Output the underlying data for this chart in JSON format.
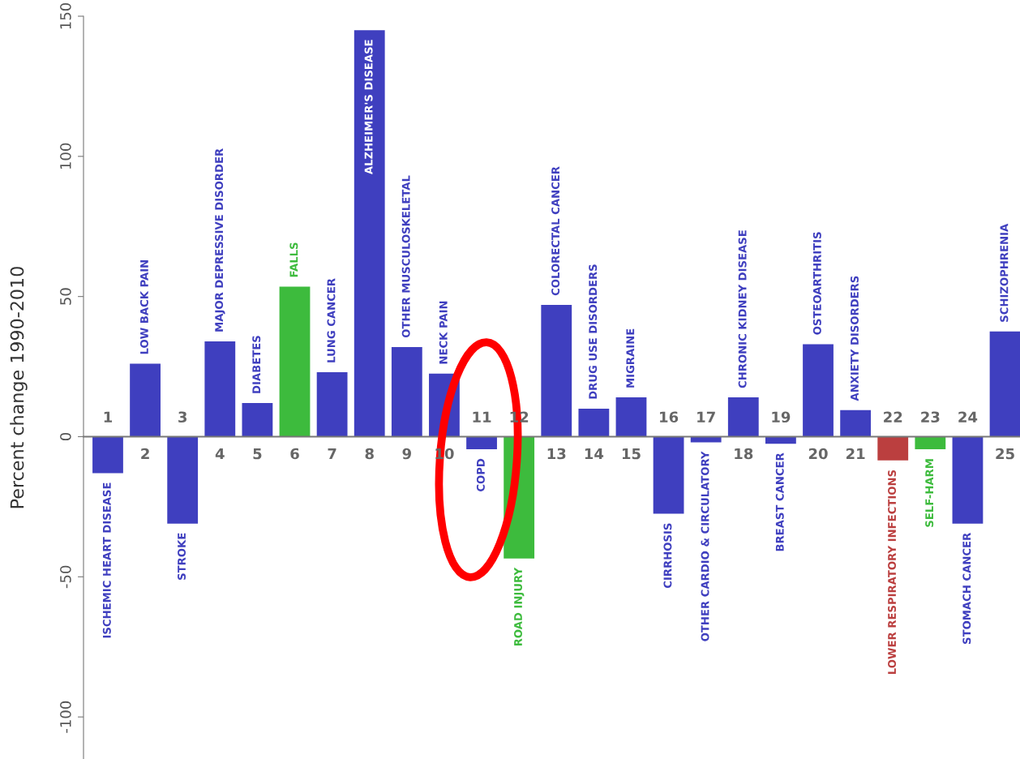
{
  "chart_data": {
    "type": "bar",
    "ylabel": "Percent change 1990-2010",
    "categories": [
      "1",
      "2",
      "3",
      "4",
      "5",
      "6",
      "7",
      "8",
      "9",
      "10",
      "11",
      "12",
      "13",
      "14",
      "15",
      "16",
      "17",
      "18",
      "19",
      "20",
      "21",
      "22",
      "23",
      "24",
      "25"
    ],
    "values": [
      -13,
      26,
      -31,
      34,
      12,
      53.5,
      23,
      145,
      32,
      22.5,
      -4.5,
      -43.5,
      47,
      10,
      14,
      -27.5,
      -2,
      14,
      -2.5,
      33,
      9.5,
      -8.5,
      -4.5,
      -31,
      37.5
    ],
    "colors": [
      "#3f3fbf",
      "#3f3fbf",
      "#3f3fbf",
      "#3f3fbf",
      "#3f3fbf",
      "#3dbb3d",
      "#3f3fbf",
      "#3f3fbf",
      "#3f3fbf",
      "#3f3fbf",
      "#3f3fbf",
      "#3dbb3d",
      "#3f3fbf",
      "#3f3fbf",
      "#3f3fbf",
      "#3f3fbf",
      "#3f3fbf",
      "#3f3fbf",
      "#3f3fbf",
      "#3f3fbf",
      "#3f3fbf",
      "#bb3f3f",
      "#3dbb3d",
      "#3f3fbf",
      "#3f3fbf"
    ],
    "ylim": [
      -115,
      150
    ],
    "yticks": [
      -100,
      -50,
      0,
      50,
      100,
      150
    ],
    "grid": false,
    "annotations": [
      {
        "text": "ISCHEMIC HEART DISEASE",
        "x": "1",
        "y": -13
      },
      {
        "text": "LOW BACK PAIN",
        "x": "2",
        "y": 26
      },
      {
        "text": "STROKE",
        "x": "3",
        "y": -31
      },
      {
        "text": "MAJOR DEPRESSIVE DISORDER",
        "x": "4",
        "y": 34
      },
      {
        "text": "DIABETES",
        "x": "5",
        "y": 12
      },
      {
        "text": "FALLS",
        "x": "6",
        "y": 53.5
      },
      {
        "text": "LUNG CANCER",
        "x": "7",
        "y": 23
      },
      {
        "text": "ALZHEIMER'S DISEASE",
        "x": "8",
        "y": 145
      },
      {
        "text": "OTHER MUSCULOSKELETAL",
        "x": "9",
        "y": 32
      },
      {
        "text": "NECK PAIN",
        "x": "10",
        "y": 22.5
      },
      {
        "text": "COPD",
        "x": "11",
        "y": -4.5
      },
      {
        "text": "ROAD INJURY",
        "x": "12",
        "y": -43.5
      },
      {
        "text": "COLORECTAL CANCER",
        "x": "13",
        "y": 47
      },
      {
        "text": "DRUG USE DISORDERS",
        "x": "14",
        "y": 10
      },
      {
        "text": "MIGRAINE",
        "x": "15",
        "y": 14
      },
      {
        "text": "CIRRHOSIS",
        "x": "16",
        "y": -27.5
      },
      {
        "text": "OTHER CARDIO & CIRCULATORY",
        "x": "17",
        "y": -2
      },
      {
        "text": "CHRONIC KIDNEY DISEASE",
        "x": "18",
        "y": 14
      },
      {
        "text": "BREAST CANCER",
        "x": "19",
        "y": -2.5
      },
      {
        "text": "OSTEOARTHRITIS",
        "x": "20",
        "y": 33
      },
      {
        "text": "ANXIETY DISORDERS",
        "x": "21",
        "y": 9.5
      },
      {
        "text": "LOWER RESPIRATORY INFECTIONS",
        "x": "22",
        "y": -8.5
      },
      {
        "text": "SELF-HARM",
        "x": "23",
        "y": -4.5
      },
      {
        "text": "STOMACH CANCER",
        "x": "24",
        "y": -31
      },
      {
        "text": "SCHIZOPHRENIA",
        "x": "25",
        "y": 37.5
      }
    ]
  }
}
